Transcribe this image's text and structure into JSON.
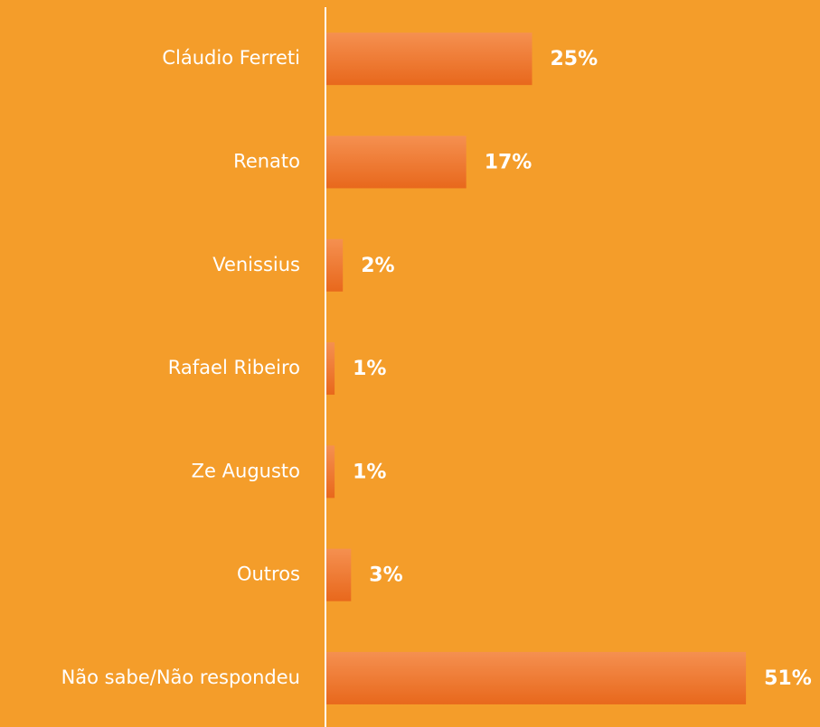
{
  "chart_data": {
    "type": "bar",
    "orientation": "horizontal",
    "categories": [
      "Cláudio Ferreti",
      "Renato",
      "Venissius",
      "Rafael Ribeiro",
      "Ze Augusto",
      "Outros",
      "Não sabe/Não respondeu"
    ],
    "values": [
      25,
      17,
      2,
      1,
      1,
      3,
      51
    ],
    "value_labels": [
      "25%",
      "17%",
      "2%",
      "1%",
      "1%",
      "3%",
      "51%"
    ],
    "color": "#ef7327"
  }
}
